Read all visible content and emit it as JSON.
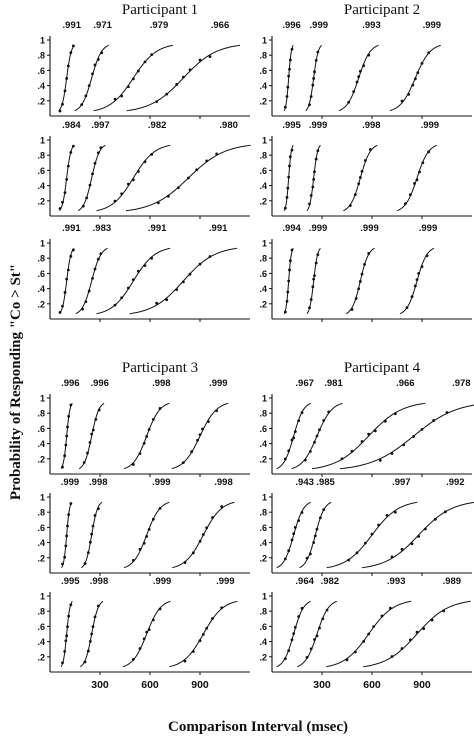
{
  "chart_data": {
    "type": "scatter",
    "xlabel": "Comparison Interval (msec)",
    "ylabel": "Probability of Responding \"Co > St\"",
    "xlim": [
      0,
      1200
    ],
    "ylim": [
      0,
      1
    ],
    "x_ticks": [
      300,
      600,
      900
    ],
    "y_ticks": [
      ".2",
      ".4",
      ".6",
      ".8",
      "1"
    ],
    "participants": [
      {
        "title": "Participant 1",
        "rows": [
          {
            "r": [
              ".991",
              ".971",
              ".979",
              ".966"
            ],
            "curves": [
              {
                "mu": 100,
                "s": 14,
                "x": [
                  60,
                  75,
                  90,
                  100,
                  110,
                  125,
                  140
                ]
              },
              {
                "mu": 250,
                "s": 30,
                "x": [
                  190,
                  215,
                  235,
                  255,
                  270,
                  290,
                  310
                ]
              },
              {
                "mu": 500,
                "s": 70,
                "x": [
                  390,
                  430,
                  470,
                  500,
                  530,
                  570,
                  610
                ]
              },
              {
                "mu": 800,
                "s": 100,
                "x": [
                  640,
                  700,
                  760,
                  800,
                  840,
                  900,
                  960
                ]
              }
            ]
          },
          {
            "r": [
              ".984",
              ".997",
              ".982",
              ".980"
            ],
            "curves": [
              {
                "mu": 100,
                "s": 13,
                "x": [
                  60,
                  75,
                  90,
                  100,
                  110,
                  125,
                  140
                ]
              },
              {
                "mu": 250,
                "s": 24,
                "x": [
                  200,
                  220,
                  240,
                  255,
                  270,
                  290,
                  305
                ]
              },
              {
                "mu": 500,
                "s": 65,
                "x": [
                  390,
                  430,
                  470,
                  500,
                  530,
                  570,
                  610
                ]
              },
              {
                "mu": 830,
                "s": 110,
                "x": [
                  650,
                  710,
                  770,
                  830,
                  880,
                  940,
                  1000
                ]
              }
            ]
          },
          {
            "r": [
              ".991",
              ".983",
              ".991",
              ".991"
            ],
            "curves": [
              {
                "mu": 100,
                "s": 13,
                "x": [
                  60,
                  75,
                  90,
                  100,
                  110,
                  125,
                  140
                ]
              },
              {
                "mu": 250,
                "s": 28,
                "x": [
                  195,
                  215,
                  235,
                  255,
                  270,
                  290,
                  305
                ]
              },
              {
                "mu": 500,
                "s": 65,
                "x": [
                  390,
                  430,
                  470,
                  500,
                  530,
                  570,
                  610
                ]
              },
              {
                "mu": 800,
                "s": 95,
                "x": [
                  640,
                  700,
                  760,
                  800,
                  840,
                  900,
                  960
                ]
              }
            ]
          }
        ]
      },
      {
        "title": "Participant 2",
        "rows": [
          {
            "r": [
              ".996",
              ".999",
              ".993",
              ".999"
            ],
            "curves": [
              {
                "mu": 100,
                "s": 8,
                "x": [
                  80,
                  90,
                  95,
                  100,
                  105,
                  110,
                  120
                ]
              },
              {
                "mu": 250,
                "s": 14,
                "x": [
                  225,
                  235,
                  245,
                  250,
                  255,
                  265,
                  275
                ]
              },
              {
                "mu": 520,
                "s": 35,
                "x": [
                  460,
                  490,
                  510,
                  520,
                  530,
                  550,
                  580
                ]
              },
              {
                "mu": 860,
                "s": 45,
                "x": [
                  780,
                  820,
                  845,
                  860,
                  875,
                  900,
                  940
                ]
              }
            ]
          },
          {
            "r": [
              ".995",
              ".999",
              ".998",
              ".999"
            ],
            "curves": [
              {
                "mu": 100,
                "s": 8,
                "x": [
                  80,
                  90,
                  95,
                  100,
                  105,
                  110,
                  120
                ]
              },
              {
                "mu": 250,
                "s": 12,
                "x": [
                  225,
                  235,
                  245,
                  250,
                  255,
                  265,
                  275
                ]
              },
              {
                "mu": 530,
                "s": 30,
                "x": [
                  470,
                  500,
                  520,
                  530,
                  540,
                  560,
                  590
                ]
              },
              {
                "mu": 870,
                "s": 35,
                "x": [
                  800,
                  830,
                  855,
                  870,
                  885,
                  905,
                  940
                ]
              }
            ]
          },
          {
            "r": [
              ".994",
              ".999",
              ".999",
              ".999"
            ],
            "curves": [
              {
                "mu": 100,
                "s": 8,
                "x": [
                  80,
                  90,
                  95,
                  100,
                  105,
                  110,
                  120
                ]
              },
              {
                "mu": 250,
                "s": 12,
                "x": [
                  225,
                  235,
                  245,
                  250,
                  255,
                  265,
                  275
                ]
              },
              {
                "mu": 530,
                "s": 25,
                "x": [
                  480,
                  505,
                  520,
                  530,
                  540,
                  555,
                  580
                ]
              },
              {
                "mu": 870,
                "s": 30,
                "x": [
                  810,
                  840,
                  860,
                  870,
                  880,
                  900,
                  930
                ]
              }
            ]
          }
        ]
      },
      {
        "title": "Participant 3",
        "rows": [
          {
            "r": [
              ".996",
              ".996",
              ".998",
              ".999"
            ],
            "curves": [
              {
                "mu": 100,
                "s": 10,
                "x": [
                  75,
                  88,
                  95,
                  100,
                  105,
                  112,
                  125
                ]
              },
              {
                "mu": 250,
                "s": 22,
                "x": [
                  205,
                  225,
                  240,
                  250,
                  260,
                  275,
                  295
                ]
              },
              {
                "mu": 580,
                "s": 40,
                "x": [
                  500,
                  540,
                  565,
                  580,
                  595,
                  620,
                  660
                ]
              },
              {
                "mu": 900,
                "s": 50,
                "x": [
                  800,
                  850,
                  885,
                  900,
                  915,
                  950,
                  1000
                ]
              }
            ]
          },
          {
            "r": [
              ".999",
              ".998",
              ".999",
              ".998"
            ],
            "curves": [
              {
                "mu": 100,
                "s": 9,
                "x": [
                  75,
                  88,
                  95,
                  100,
                  105,
                  112,
                  125
                ]
              },
              {
                "mu": 250,
                "s": 18,
                "x": [
                  210,
                  230,
                  242,
                  250,
                  258,
                  270,
                  290
                ]
              },
              {
                "mu": 580,
                "s": 40,
                "x": [
                  500,
                  540,
                  565,
                  580,
                  595,
                  620,
                  660
                ]
              },
              {
                "mu": 920,
                "s": 55,
                "x": [
                  810,
                  860,
                  900,
                  920,
                  940,
                  975,
                  1030
                ]
              }
            ]
          },
          {
            "r": [
              ".995",
              ".998",
              ".999",
              ".999"
            ],
            "curves": [
              {
                "mu": 100,
                "s": 10,
                "x": [
                  75,
                  88,
                  95,
                  100,
                  105,
                  112,
                  125
                ]
              },
              {
                "mu": 250,
                "s": 20,
                "x": [
                  210,
                  230,
                  242,
                  250,
                  258,
                  270,
                  290
                ]
              },
              {
                "mu": 580,
                "s": 42,
                "x": [
                  500,
                  540,
                  565,
                  580,
                  595,
                  620,
                  660
                ]
              },
              {
                "mu": 920,
                "s": 60,
                "x": [
                  810,
                  860,
                  900,
                  920,
                  940,
                  975,
                  1030
                ]
              }
            ]
          }
        ]
      },
      {
        "title": "Participant 4",
        "rows": [
          {
            "r": [
              ".967",
              ".981",
              ".966",
              ".978"
            ],
            "curves": [
              {
                "mu": 130,
                "s": 30,
                "x": [
                  80,
                  100,
                  120,
                  130,
                  140,
                  160,
                  180
                ]
              },
              {
                "mu": 270,
                "s": 45,
                "x": [
                  200,
                  230,
                  255,
                  270,
                  285,
                  310,
                  340
                ]
              },
              {
                "mu": 580,
                "s": 100,
                "x": [
                  420,
                  480,
                  540,
                  580,
                  620,
                  680,
                  740
                ]
              },
              {
                "mu": 850,
                "s": 130,
                "x": [
                  650,
                  720,
                  790,
                  850,
                  900,
                  970,
                  1050
                ]
              }
            ]
          },
          {
            "r": [
              ".943",
              ".985",
              ".997",
              ".992"
            ],
            "curves": [
              {
                "mu": 130,
                "s": 30,
                "x": [
                  80,
                  100,
                  120,
                  130,
                  140,
                  160,
                  180
                ]
              },
              {
                "mu": 260,
                "s": 28,
                "x": [
                  210,
                  230,
                  250,
                  260,
                  270,
                  290,
                  310
                ]
              },
              {
                "mu": 600,
                "s": 80,
                "x": [
                  460,
                  510,
                  560,
                  600,
                  640,
                  690,
                  740
                ]
              },
              {
                "mu": 880,
                "s": 100,
                "x": [
                  720,
                  780,
                  840,
                  880,
                  920,
                  980,
                  1040
                ]
              }
            ]
          },
          {
            "r": [
              ".964",
              ".982",
              ".993",
              ".989"
            ],
            "curves": [
              {
                "mu": 130,
                "s": 30,
                "x": [
                  80,
                  100,
                  120,
                  130,
                  140,
                  160,
                  180
                ]
              },
              {
                "mu": 270,
                "s": 35,
                "x": [
                  210,
                  235,
                  255,
                  270,
                  285,
                  305,
                  330
                ]
              },
              {
                "mu": 580,
                "s": 75,
                "x": [
                  450,
                  500,
                  550,
                  580,
                  610,
                  660,
                  710
                ]
              },
              {
                "mu": 870,
                "s": 95,
                "x": [
                  720,
                  780,
                  830,
                  870,
                  910,
                  960,
                  1030
                ]
              }
            ]
          }
        ]
      }
    ]
  }
}
